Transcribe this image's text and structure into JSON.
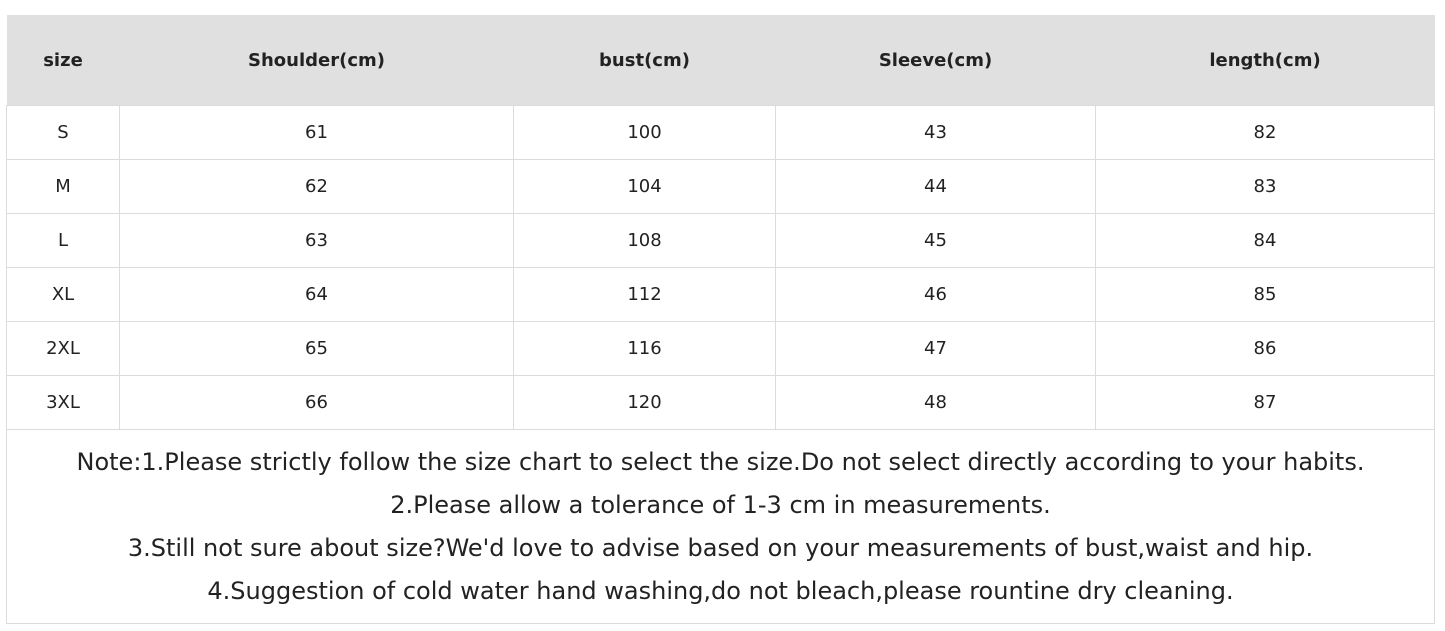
{
  "headers": [
    "size",
    "Shoulder(cm)",
    "bust(cm)",
    "Sleeve(cm)",
    "length(cm)"
  ],
  "rows": [
    [
      "S",
      "61",
      "100",
      "43",
      "82"
    ],
    [
      "M",
      "62",
      "104",
      "44",
      "83"
    ],
    [
      "L",
      "63",
      "108",
      "45",
      "84"
    ],
    [
      "XL",
      "64",
      "112",
      "46",
      "85"
    ],
    [
      "2XL",
      "65",
      "116",
      "47",
      "86"
    ],
    [
      "3XL",
      "66",
      "120",
      "48",
      "87"
    ]
  ],
  "notes": [
    "Note:1.Please strictly follow the size chart to select the size.Do not select directly according to your habits.",
    "2.Please allow a tolerance of 1-3 cm in measurements.",
    "3.Still not sure about size?We'd love to advise based on your measurements of bust,waist and hip.",
    "4.Suggestion of cold water hand washing,do not bleach,please rountine dry cleaning."
  ]
}
